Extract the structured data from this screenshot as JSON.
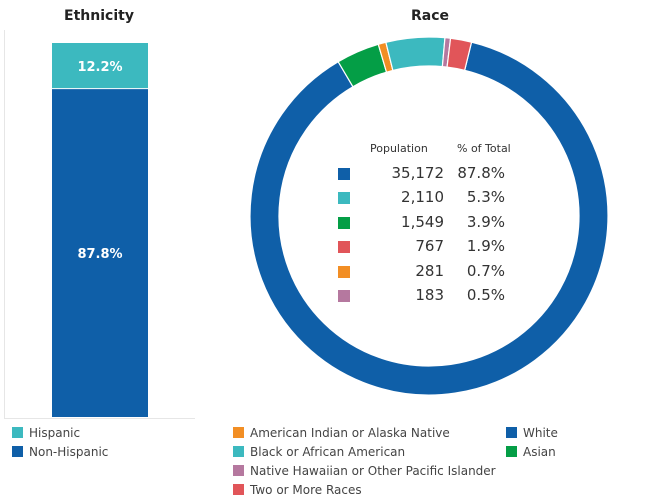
{
  "chart_data": [
    {
      "type": "bar",
      "stacked": true,
      "title": "Ethnicity",
      "series": [
        {
          "name": "Non-Hispanic",
          "value": 87.8,
          "label": "87.8%",
          "color": "#0F5FA8"
        },
        {
          "name": "Hispanic",
          "value": 12.2,
          "label": "12.2%",
          "color": "#3CB9BF"
        }
      ],
      "ylim": [
        0,
        100
      ],
      "legend_position": "bottom-left",
      "legend": [
        {
          "name": "Hispanic",
          "color": "#3CB9BF"
        },
        {
          "name": "Non-Hispanic",
          "color": "#0F5FA8"
        }
      ]
    },
    {
      "type": "pie",
      "donut": true,
      "title": "Race",
      "slices": [
        {
          "name": "White",
          "population": 35172,
          "population_label": "35,172",
          "percent": 87.8,
          "percent_label": "87.8%",
          "color": "#0F5FA8"
        },
        {
          "name": "Asian",
          "population": 1549,
          "population_label": "1,549",
          "percent": 3.9,
          "percent_label": "3.9%",
          "color": "#049E46"
        },
        {
          "name": "American Indian or Alaska Native",
          "population": 281,
          "population_label": "281",
          "percent": 0.7,
          "percent_label": "0.7%",
          "color": "#F28E24"
        },
        {
          "name": "Black or African American",
          "population": 2110,
          "population_label": "2,110",
          "percent": 5.3,
          "percent_label": "5.3%",
          "color": "#3CB9BF"
        },
        {
          "name": "Native Hawaiian or Other Pacific Islander",
          "population": 183,
          "population_label": "183",
          "percent": 0.5,
          "percent_label": "0.5%",
          "color": "#B5789F"
        },
        {
          "name": "Two or More Races",
          "population": 767,
          "population_label": "767",
          "percent": 1.9,
          "percent_label": "1.9%",
          "color": "#E15559"
        }
      ],
      "table": {
        "headers": {
          "population": "Population",
          "percent": "% of Total"
        },
        "row_order": [
          "White",
          "Black or African American",
          "Asian",
          "Two or More Races",
          "American Indian or Alaska Native",
          "Native Hawaiian or Other Pacific Islander"
        ]
      },
      "legend_position": "bottom",
      "legend_columns": [
        [
          "American Indian or Alaska Native",
          "Black or African American",
          "Native Hawaiian or Other Pacific Islander",
          "Two or More Races"
        ],
        [
          "White",
          "Asian"
        ]
      ]
    }
  ]
}
